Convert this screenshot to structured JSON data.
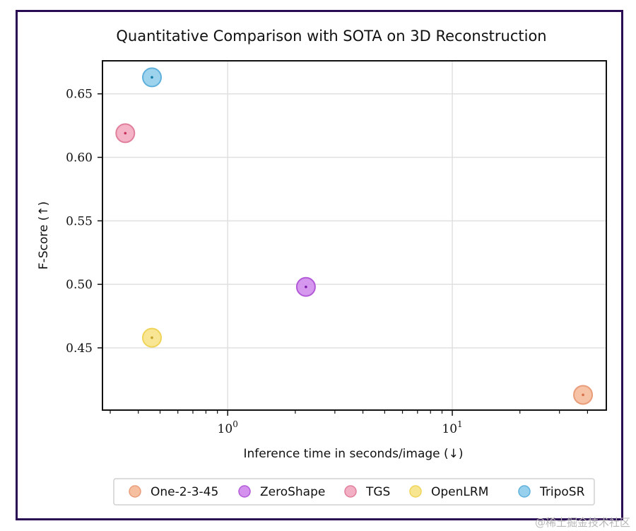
{
  "chart_data": {
    "type": "scatter",
    "title": "Quantitative Comparison with SOTA on 3D Reconstruction",
    "xlabel": "Inference time in seconds/image (↓)",
    "ylabel": "F-Score (↑)",
    "xscale": "log",
    "xlim": [
      0.277,
      48.5
    ],
    "ylim": [
      0.401,
      0.676
    ],
    "xticks": [
      {
        "value": 1,
        "label_base": "10",
        "label_exp": "0"
      },
      {
        "value": 10,
        "label_base": "10",
        "label_exp": "1"
      }
    ],
    "yticks": [
      {
        "value": 0.45,
        "label": "0.45"
      },
      {
        "value": 0.5,
        "label": "0.50"
      },
      {
        "value": 0.55,
        "label": "0.55"
      },
      {
        "value": 0.6,
        "label": "0.60"
      },
      {
        "value": 0.65,
        "label": "0.65"
      }
    ],
    "grid": true,
    "legend_position": "bottom",
    "series": [
      {
        "name": "One-2-3-45",
        "x": 38.2,
        "y": 0.413,
        "color": "#f4b896",
        "edge": "#e99d7a",
        "center": "#d9704a"
      },
      {
        "name": "ZeroShape",
        "x": 2.23,
        "y": 0.498,
        "color": "#cf86ec",
        "edge": "#b25ad8",
        "center": "#7a1ba8"
      },
      {
        "name": "TGS",
        "x": 0.35,
        "y": 0.619,
        "color": "#f2a6bc",
        "edge": "#e07f9b",
        "center": "#c8325c"
      },
      {
        "name": "OpenLRM",
        "x": 0.46,
        "y": 0.458,
        "color": "#f7e283",
        "edge": "#f0d45a",
        "center": "#c4a52a"
      },
      {
        "name": "TripoSR",
        "x": 0.46,
        "y": 0.663,
        "color": "#8ccbea",
        "edge": "#5fb1dc",
        "center": "#137fa8"
      }
    ]
  },
  "watermark": "@稀土掘金技术社区"
}
